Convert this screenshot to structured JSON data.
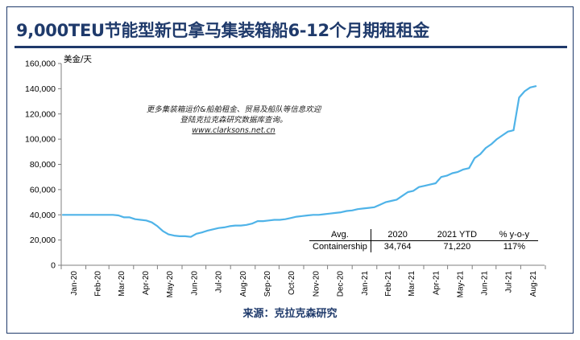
{
  "title": "9,000TEU节能型新巴拿马集装箱船6-12个月期租租金",
  "source": "来源：克拉克森研究",
  "note": {
    "line1": "更多集装箱运价&船舶租金、贸易及船队等信息欢迎",
    "line2": "登陆克拉克森研究数据库查询。",
    "url": "www.clarksons.net.cn"
  },
  "table": {
    "headers": [
      "Avg.",
      "2020",
      "2021 YTD",
      "% y-o-y"
    ],
    "row": [
      "Containership",
      "34,764",
      "71,220",
      "117%"
    ]
  },
  "colors": {
    "line": "#4fb3e8",
    "title": "#1f3a6b",
    "axis": "#7f7f7f"
  },
  "chart_data": {
    "type": "line",
    "title": "9,000TEU节能型新巴拿马集装箱船6-12个月期租租金",
    "ylabel": "美金/天",
    "xlabel": "",
    "ylim": [
      0,
      160000
    ],
    "yticks": [
      0,
      20000,
      40000,
      60000,
      80000,
      100000,
      120000,
      140000,
      160000
    ],
    "ytick_labels": [
      "0",
      "20,000",
      "40,000",
      "60,000",
      "80,000",
      "100,000",
      "120,000",
      "140,000",
      "160,000"
    ],
    "xtick_labels": [
      "Jan-20",
      "Feb-20",
      "Mar-20",
      "Apr-20",
      "May-20",
      "Jun-20",
      "Jul-20",
      "Aug-20",
      "Sep-20",
      "Oct-20",
      "Nov-20",
      "Dec-20",
      "Jan-21",
      "Feb-21",
      "Mar-21",
      "Apr-21",
      "May-21",
      "Jun-21",
      "Jul-21",
      "Aug-21"
    ],
    "grid": false,
    "legend": "none",
    "series": [
      {
        "name": "",
        "x": [
          "2020-01-03",
          "2020-01-10",
          "2020-01-17",
          "2020-01-24",
          "2020-01-31",
          "2020-02-07",
          "2020-02-14",
          "2020-02-21",
          "2020-02-28",
          "2020-03-06",
          "2020-03-13",
          "2020-03-20",
          "2020-03-27",
          "2020-04-03",
          "2020-04-10",
          "2020-04-17",
          "2020-04-24",
          "2020-05-01",
          "2020-05-08",
          "2020-05-15",
          "2020-05-22",
          "2020-05-29",
          "2020-06-05",
          "2020-06-12",
          "2020-06-19",
          "2020-06-26",
          "2020-07-03",
          "2020-07-10",
          "2020-07-17",
          "2020-07-24",
          "2020-07-31",
          "2020-08-07",
          "2020-08-14",
          "2020-08-21",
          "2020-08-28",
          "2020-09-04",
          "2020-09-11",
          "2020-09-18",
          "2020-09-25",
          "2020-10-02",
          "2020-10-09",
          "2020-10-16",
          "2020-10-23",
          "2020-10-30",
          "2020-11-06",
          "2020-11-13",
          "2020-11-20",
          "2020-11-27",
          "2020-12-04",
          "2020-12-11",
          "2020-12-18",
          "2020-12-25",
          "2021-01-01",
          "2021-01-08",
          "2021-01-15",
          "2021-01-22",
          "2021-01-29",
          "2021-02-05",
          "2021-02-12",
          "2021-02-19",
          "2021-02-26",
          "2021-03-05",
          "2021-03-12",
          "2021-03-19",
          "2021-03-26",
          "2021-04-02",
          "2021-04-09",
          "2021-04-16",
          "2021-04-23",
          "2021-04-30",
          "2021-05-07",
          "2021-05-14",
          "2021-05-21",
          "2021-05-28",
          "2021-06-04",
          "2021-06-11",
          "2021-06-18",
          "2021-06-25",
          "2021-07-02",
          "2021-07-09",
          "2021-07-16",
          "2021-07-23",
          "2021-07-30",
          "2021-08-06",
          "2021-08-13",
          "2021-08-20"
        ],
        "values": [
          40000,
          40000,
          40000,
          40000,
          40000,
          40000,
          40000,
          40000,
          40000,
          40000,
          39500,
          38000,
          38000,
          36500,
          36000,
          35500,
          34000,
          31000,
          27000,
          24500,
          23500,
          23000,
          23000,
          22500,
          25000,
          26000,
          27500,
          28500,
          29500,
          30000,
          31000,
          31500,
          31500,
          32000,
          33000,
          35000,
          35000,
          35500,
          36000,
          36000,
          36500,
          37500,
          38500,
          39000,
          39500,
          40000,
          40000,
          40500,
          41000,
          41500,
          42000,
          43000,
          43500,
          44500,
          45000,
          45500,
          46000,
          48000,
          50000,
          51000,
          52000,
          55000,
          58000,
          59000,
          62000,
          63000,
          64000,
          65000,
          70000,
          71000,
          73000,
          74000,
          76000,
          77000,
          85000,
          88000,
          93000,
          96000,
          100000,
          103000,
          106000,
          107000,
          133000,
          138000,
          141000,
          142000
        ]
      }
    ]
  }
}
